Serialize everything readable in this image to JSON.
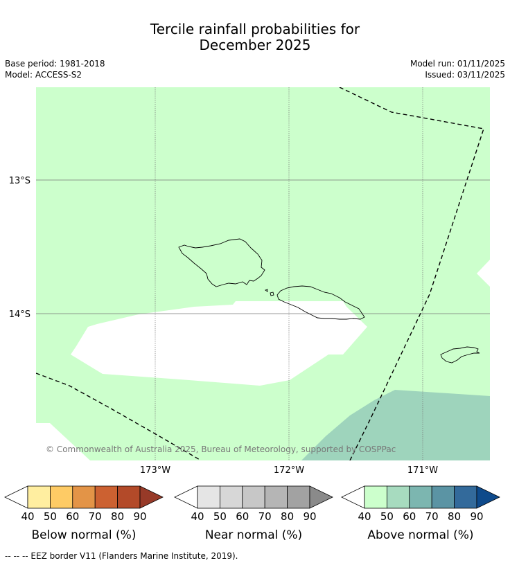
{
  "title_line1": "Tercile rainfall probabilities for",
  "title_line2": "December 2025",
  "meta": {
    "base_period": "Base period: 1981-2018",
    "model": "Model: ACCESS-S2",
    "model_run": "Model run: 01/11/2025",
    "issued": "Issued: 03/11/2025"
  },
  "map": {
    "lat_labels": [
      "13°S",
      "14°S"
    ],
    "lon_labels": [
      "173°W",
      "172°W",
      "171°W"
    ],
    "copyright": "© Commonwealth of Australia 2025, Bureau of Meteorology, supported by COSPPac",
    "colors": {
      "above_40": "#ccffcc",
      "above_50_60": "#9ed4bc",
      "grid": "#777777",
      "eez": "#000000"
    }
  },
  "colorbars": [
    {
      "title": "Below normal (%)",
      "ticks": [
        "40",
        "50",
        "60",
        "70",
        "80",
        "90"
      ],
      "colors": [
        "#ffeea0",
        "#fecb65",
        "#e39447",
        "#cc6131",
        "#b34a29",
        "#973a28"
      ]
    },
    {
      "title": "Near normal (%)",
      "ticks": [
        "40",
        "50",
        "60",
        "70",
        "80",
        "90"
      ],
      "colors": [
        "#e5e5e5",
        "#d7d7d7",
        "#c7c7c7",
        "#b5b5b5",
        "#a2a2a2",
        "#8a8a8a"
      ]
    },
    {
      "title": "Above normal (%)",
      "ticks": [
        "40",
        "50",
        "60",
        "70",
        "80",
        "90"
      ],
      "colors": [
        "#ccffcc",
        "#a7dbbf",
        "#7cb6b0",
        "#5b94a4",
        "#336a9b",
        "#0e4a8b"
      ]
    }
  ],
  "footer": "--  --  -- EEZ border V11 (Flanders Marine Institute, 2019)."
}
